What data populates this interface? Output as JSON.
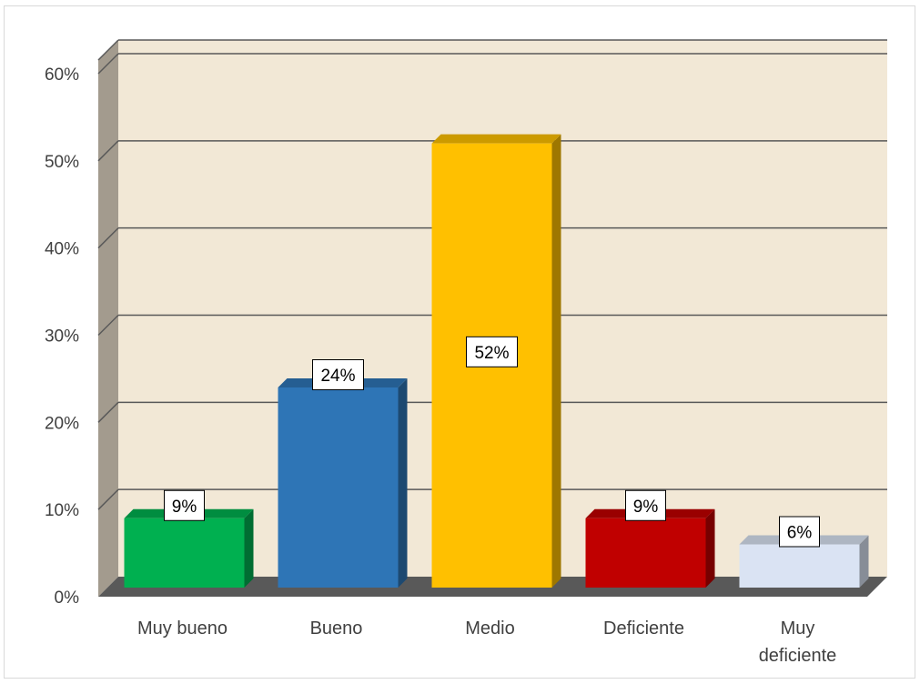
{
  "chart_data": {
    "type": "bar",
    "categories": [
      "Muy bueno",
      "Bueno",
      "Medio",
      "Deficiente",
      "Muy deficiente"
    ],
    "category_lines": [
      [
        "Muy bueno"
      ],
      [
        "Bueno"
      ],
      [
        "Medio"
      ],
      [
        "Deficiente"
      ],
      [
        "Muy",
        "deficiente"
      ]
    ],
    "values": [
      9,
      24,
      52,
      9,
      6
    ],
    "data_labels": [
      "9%",
      "24%",
      "52%",
      "9%",
      "6%"
    ],
    "y_ticks": [
      "0%",
      "10%",
      "20%",
      "30%",
      "40%",
      "50%",
      "60%"
    ],
    "ylim": [
      0,
      60
    ],
    "grid": true,
    "legend": "none",
    "style": "3d-column",
    "colors": {
      "bars": [
        "#00b050",
        "#2e75b6",
        "#ffc000",
        "#c00000",
        "#dae3f3"
      ],
      "back_wall": "#f2e8d6",
      "side_wall": "#a39b8e",
      "floor": "#595959",
      "gridline": "#595959"
    }
  }
}
